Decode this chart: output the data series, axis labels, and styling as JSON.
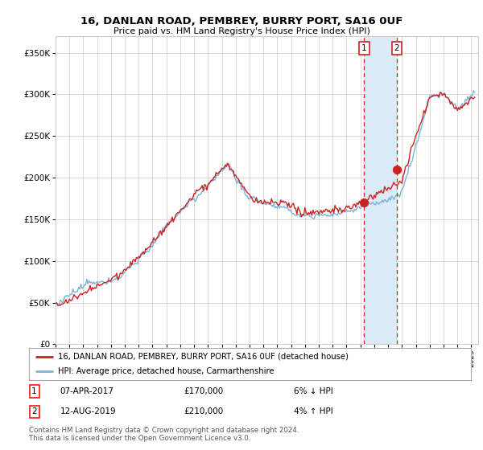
{
  "title": "16, DANLAN ROAD, PEMBREY, BURRY PORT, SA16 0UF",
  "subtitle": "Price paid vs. HM Land Registry's House Price Index (HPI)",
  "yticks": [
    0,
    50000,
    100000,
    150000,
    200000,
    250000,
    300000,
    350000
  ],
  "xlim_start": 1995.0,
  "xlim_end": 2025.5,
  "ylim": [
    0,
    370000
  ],
  "sale1_date": 2017.27,
  "sale1_price": 170000,
  "sale1_label": "1",
  "sale2_date": 2019.62,
  "sale2_price": 210000,
  "sale2_label": "2",
  "hpi_color": "#7ab3d8",
  "price_color": "#cc2222",
  "shade_color": "#daeaf7",
  "legend_label1": "16, DANLAN ROAD, PEMBREY, BURRY PORT, SA16 0UF (detached house)",
  "legend_label2": "HPI: Average price, detached house, Carmarthenshire",
  "note1_label": "1",
  "note1_date": "07-APR-2017",
  "note1_price": "£170,000",
  "note1_pct": "6% ↓ HPI",
  "note2_label": "2",
  "note2_date": "12-AUG-2019",
  "note2_price": "£210,000",
  "note2_pct": "4% ↑ HPI",
  "footer": "Contains HM Land Registry data © Crown copyright and database right 2024.\nThis data is licensed under the Open Government Licence v3.0.",
  "background_color": "#ffffff",
  "grid_color": "#cccccc"
}
